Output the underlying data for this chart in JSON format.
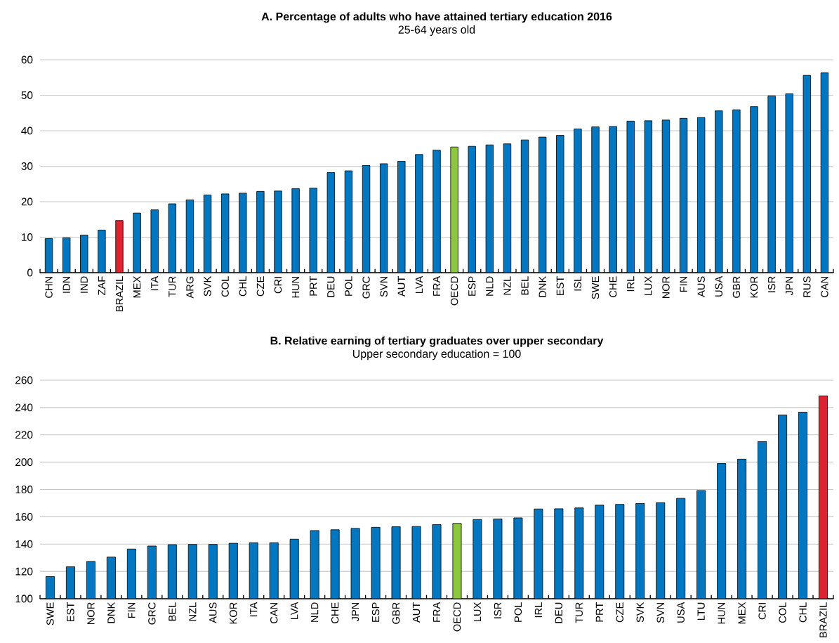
{
  "chart_data": [
    {
      "type": "bar",
      "title": "A. Percentage of adults who have attained tertiary education 2016",
      "subtitle": "25-64 years old",
      "categories": [
        "CHN",
        "IDN",
        "IND",
        "ZAF",
        "BRAZIL",
        "MEX",
        "ITA",
        "TUR",
        "ARG",
        "SVK",
        "COL",
        "CHL",
        "CZE",
        "CRI",
        "HUN",
        "PRT",
        "DEU",
        "POL",
        "GRC",
        "SVN",
        "AUT",
        "LVA",
        "FRA",
        "OECD",
        "ESP",
        "NLD",
        "NZL",
        "BEL",
        "DNK",
        "EST",
        "ISL",
        "SWE",
        "CHE",
        "IRL",
        "LUX",
        "NOR",
        "FIN",
        "AUS",
        "USA",
        "GBR",
        "KOR",
        "ISR",
        "JPN",
        "RUS",
        "CAN"
      ],
      "values": [
        9.6,
        9.8,
        10.6,
        12.0,
        14.7,
        16.8,
        17.7,
        19.4,
        20.5,
        21.9,
        22.2,
        22.4,
        22.9,
        23.0,
        23.7,
        23.8,
        28.2,
        28.7,
        30.2,
        30.7,
        31.4,
        33.3,
        34.5,
        35.4,
        35.6,
        36.0,
        36.3,
        37.4,
        38.2,
        38.7,
        40.5,
        41.1,
        41.2,
        42.7,
        42.8,
        43.0,
        43.5,
        43.7,
        45.6,
        45.9,
        46.8,
        49.8,
        50.4,
        55.6,
        56.3
      ],
      "colors": [
        "#0077c0",
        "#0077c0",
        "#0077c0",
        "#0077c0",
        "#dd2230",
        "#0077c0",
        "#0077c0",
        "#0077c0",
        "#0077c0",
        "#0077c0",
        "#0077c0",
        "#0077c0",
        "#0077c0",
        "#0077c0",
        "#0077c0",
        "#0077c0",
        "#0077c0",
        "#0077c0",
        "#0077c0",
        "#0077c0",
        "#0077c0",
        "#0077c0",
        "#0077c0",
        "#8dc63f",
        "#0077c0",
        "#0077c0",
        "#0077c0",
        "#0077c0",
        "#0077c0",
        "#0077c0",
        "#0077c0",
        "#0077c0",
        "#0077c0",
        "#0077c0",
        "#0077c0",
        "#0077c0",
        "#0077c0",
        "#0077c0",
        "#0077c0",
        "#0077c0",
        "#0077c0",
        "#0077c0",
        "#0077c0",
        "#0077c0",
        "#0077c0"
      ],
      "ylim": [
        0,
        60
      ],
      "yticks": [
        0,
        10,
        20,
        30,
        40,
        50,
        60
      ],
      "grid": "y"
    },
    {
      "type": "bar",
      "title": "B. Relative earning of tertiary graduates over upper secondary",
      "subtitle": "Upper secondary education = 100",
      "categories": [
        "SWE",
        "EST",
        "NOR",
        "DNK",
        "FIN",
        "GRC",
        "BEL",
        "NZL",
        "AUS",
        "KOR",
        "ITA",
        "CAN",
        "LVA",
        "NLD",
        "CHE",
        "JPN",
        "ESP",
        "GBR",
        "AUT",
        "FRA",
        "OECD",
        "LUX",
        "ISR",
        "POL",
        "IRL",
        "DEU",
        "TUR",
        "PRT",
        "CZE",
        "SVK",
        "SVN",
        "USA",
        "LTU",
        "HUN",
        "MEX",
        "CRI",
        "COL",
        "CHL",
        "BRAZIL"
      ],
      "values": [
        116.2,
        123.4,
        127.3,
        130.5,
        136.4,
        138.6,
        139.6,
        139.8,
        139.8,
        140.6,
        141.0,
        141.0,
        143.6,
        149.9,
        150.5,
        151.5,
        152.3,
        152.7,
        152.9,
        154.3,
        155.2,
        158.0,
        158.4,
        159.2,
        165.7,
        165.9,
        166.5,
        168.5,
        169.1,
        169.7,
        170.3,
        173.5,
        179.2,
        199.0,
        202.2,
        215.0,
        234.5,
        236.6,
        248.5
      ],
      "colors": [
        "#0077c0",
        "#0077c0",
        "#0077c0",
        "#0077c0",
        "#0077c0",
        "#0077c0",
        "#0077c0",
        "#0077c0",
        "#0077c0",
        "#0077c0",
        "#0077c0",
        "#0077c0",
        "#0077c0",
        "#0077c0",
        "#0077c0",
        "#0077c0",
        "#0077c0",
        "#0077c0",
        "#0077c0",
        "#0077c0",
        "#8dc63f",
        "#0077c0",
        "#0077c0",
        "#0077c0",
        "#0077c0",
        "#0077c0",
        "#0077c0",
        "#0077c0",
        "#0077c0",
        "#0077c0",
        "#0077c0",
        "#0077c0",
        "#0077c0",
        "#0077c0",
        "#0077c0",
        "#0077c0",
        "#0077c0",
        "#0077c0",
        "#dd2230"
      ],
      "ylim": [
        100,
        260
      ],
      "yticks": [
        100,
        120,
        140,
        160,
        180,
        200,
        220,
        240,
        260
      ],
      "grid": "y"
    }
  ]
}
